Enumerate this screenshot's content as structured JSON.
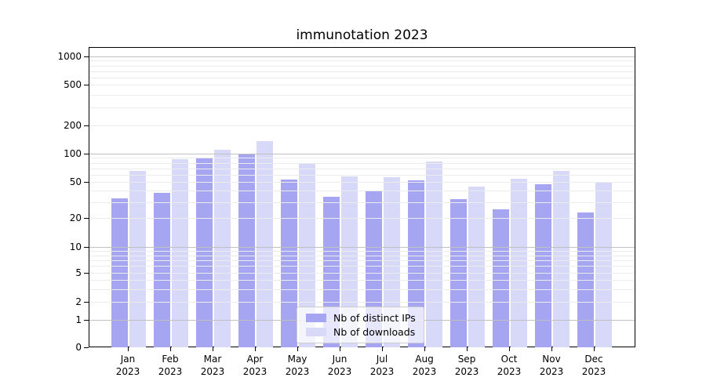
{
  "title": "immunotation 2023",
  "colors": {
    "distinct_ips": "#a5a5f2",
    "downloads": "#d8d8f8",
    "grid_major": "#c0c0c0",
    "grid_minor": "#ececec",
    "axis": "#000000",
    "background": "#ffffff"
  },
  "legend": {
    "items": [
      {
        "label": "Nb of distinct IPs",
        "color_key": "distinct_ips"
      },
      {
        "label": "Nb of downloads",
        "color_key": "downloads"
      }
    ]
  },
  "x_axis": {
    "months": [
      "Jan",
      "Feb",
      "Mar",
      "Apr",
      "May",
      "Jun",
      "Jul",
      "Aug",
      "Sep",
      "Oct",
      "Nov",
      "Dec"
    ],
    "year": "2023"
  },
  "y_axis": {
    "ticks": [
      0,
      1,
      2,
      5,
      10,
      20,
      50,
      100,
      200,
      500,
      1000
    ]
  },
  "chart_data": {
    "type": "bar",
    "title": "immunotation 2023",
    "categories": [
      "Jan 2023",
      "Feb 2023",
      "Mar 2023",
      "Apr 2023",
      "May 2023",
      "Jun 2023",
      "Jul 2023",
      "Aug 2023",
      "Sep 2023",
      "Oct 2023",
      "Nov 2023",
      "Dec 2023"
    ],
    "series": [
      {
        "name": "Nb of distinct IPs",
        "color_key": "distinct_ips",
        "values": [
          33,
          38,
          90,
          100,
          53,
          34,
          39,
          52,
          32,
          25,
          47,
          23
        ]
      },
      {
        "name": "Nb of downloads",
        "color_key": "downloads",
        "values": [
          66,
          87,
          110,
          135,
          79,
          57,
          56,
          82,
          44,
          54,
          66,
          49
        ]
      }
    ],
    "yscale": "symlog",
    "y_ticks": [
      0,
      1,
      2,
      5,
      10,
      20,
      50,
      100,
      200,
      500,
      1000
    ],
    "ylim": [
      0,
      1300
    ],
    "grid": "both",
    "legend_position": "lower center (inside axes)"
  }
}
